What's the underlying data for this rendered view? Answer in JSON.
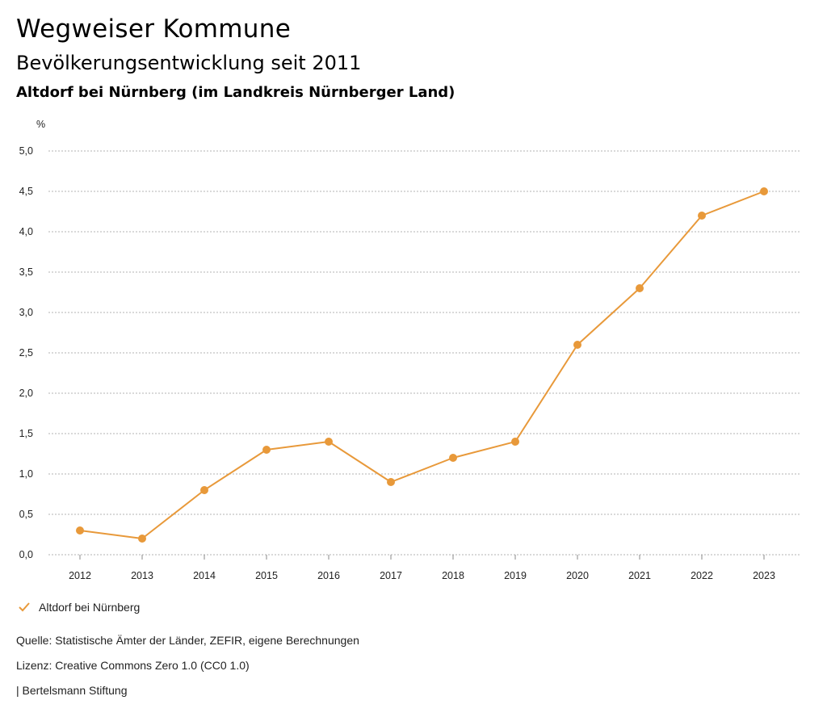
{
  "header": {
    "title": "Wegweiser Kommune",
    "subtitle": "Bevölkerungsentwicklung seit 2011",
    "region": "Altdorf bei Nürnberg (im Landkreis Nürnberger Land)"
  },
  "legend": {
    "label": "Altdorf bei Nürnberg",
    "icon": "check-icon"
  },
  "footer": {
    "source": "Quelle: Statistische Ämter der Länder, ZEFIR, eigene Berechnungen",
    "license": "Lizenz: Creative Commons Zero 1.0 (CC0 1.0)",
    "publisher": "| Bertelsmann Stiftung"
  },
  "colors": {
    "series": "#e8993a",
    "grid": "#9a9a9a",
    "axis": "#888888"
  },
  "chart_data": {
    "type": "line",
    "title": "Bevölkerungsentwicklung seit 2011",
    "xlabel": "",
    "ylabel": "%",
    "categories": [
      "2012",
      "2013",
      "2014",
      "2015",
      "2016",
      "2017",
      "2018",
      "2019",
      "2020",
      "2021",
      "2022",
      "2023"
    ],
    "series": [
      {
        "name": "Altdorf bei Nürnberg",
        "values": [
          0.3,
          0.2,
          0.8,
          1.3,
          1.4,
          0.9,
          1.2,
          1.4,
          2.6,
          3.3,
          4.2,
          4.5
        ]
      }
    ],
    "ylim": [
      0,
      5
    ],
    "yticks": [
      "0,0",
      "0,5",
      "1,0",
      "1,5",
      "2,0",
      "2,5",
      "3,0",
      "3,5",
      "4,0",
      "4,5",
      "5,0"
    ],
    "grid": true,
    "legend_position": "bottom-left"
  }
}
